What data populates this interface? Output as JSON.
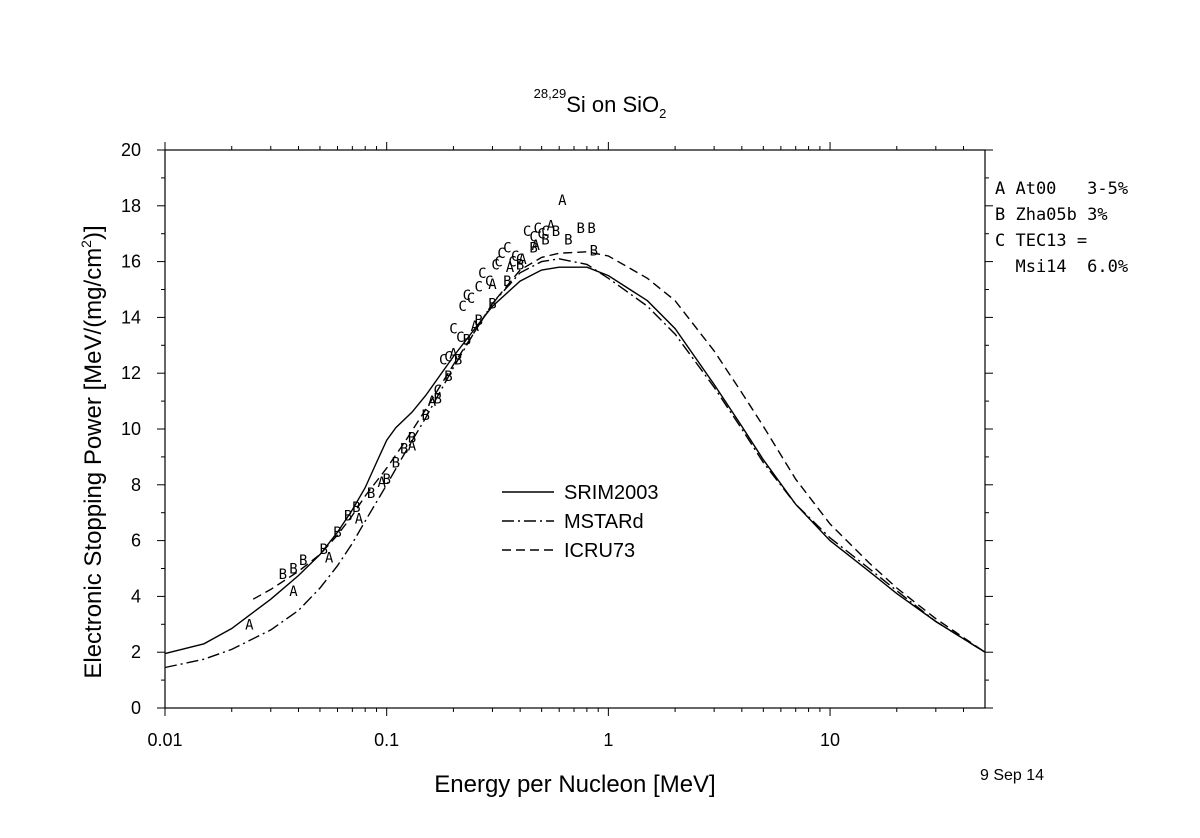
{
  "chart_data": {
    "type": "line",
    "title": {
      "superscript": "28,29",
      "main": "Si on SiO",
      "subscript": "2"
    },
    "xlabel": "Energy per Nucleon [MeV]",
    "ylabel": {
      "main": "Electronic Stopping Power [MeV/(mg/cm",
      "superscript": "2",
      "end": ")]"
    },
    "x_scale": "log",
    "xlim": [
      0.01,
      50
    ],
    "ylim": [
      0,
      20
    ],
    "x_ticks": [
      {
        "value": 0.01,
        "label": "0.01"
      },
      {
        "value": 0.1,
        "label": "0.1"
      },
      {
        "value": 1,
        "label": "1"
      },
      {
        "value": 10,
        "label": "10"
      }
    ],
    "y_ticks": [
      {
        "value": 0,
        "label": "0"
      },
      {
        "value": 2,
        "label": "2"
      },
      {
        "value": 4,
        "label": "4"
      },
      {
        "value": 6,
        "label": "6"
      },
      {
        "value": 8,
        "label": "8"
      },
      {
        "value": 10,
        "label": "10"
      },
      {
        "value": 12,
        "label": "12"
      },
      {
        "value": 14,
        "label": "14"
      },
      {
        "value": 16,
        "label": "16"
      },
      {
        "value": 18,
        "label": "18"
      },
      {
        "value": 20,
        "label": "20"
      }
    ],
    "grid": false,
    "date_stamp": "9 Sep 14",
    "series": [
      {
        "name": "SRIM2003",
        "style": "solid",
        "points": [
          [
            0.01,
            1.95
          ],
          [
            0.015,
            2.3
          ],
          [
            0.02,
            2.85
          ],
          [
            0.03,
            3.9
          ],
          [
            0.04,
            4.75
          ],
          [
            0.05,
            5.5
          ],
          [
            0.06,
            6.3
          ],
          [
            0.07,
            7.1
          ],
          [
            0.08,
            7.9
          ],
          [
            0.09,
            8.8
          ],
          [
            0.1,
            9.6
          ],
          [
            0.11,
            10.05
          ],
          [
            0.13,
            10.6
          ],
          [
            0.15,
            11.2
          ],
          [
            0.2,
            12.6
          ],
          [
            0.25,
            13.6
          ],
          [
            0.3,
            14.4
          ],
          [
            0.4,
            15.3
          ],
          [
            0.5,
            15.7
          ],
          [
            0.6,
            15.8
          ],
          [
            0.8,
            15.8
          ],
          [
            1,
            15.5
          ],
          [
            1.5,
            14.6
          ],
          [
            2,
            13.6
          ],
          [
            3,
            11.6
          ],
          [
            4,
            10.1
          ],
          [
            5,
            8.9
          ],
          [
            7,
            7.3
          ],
          [
            10,
            6.0
          ],
          [
            15,
            4.9
          ],
          [
            20,
            4.1
          ],
          [
            30,
            3.1
          ],
          [
            50,
            2.0
          ]
        ]
      },
      {
        "name": "MSTARd",
        "style": "dashdot",
        "points": [
          [
            0.01,
            1.45
          ],
          [
            0.015,
            1.75
          ],
          [
            0.02,
            2.1
          ],
          [
            0.03,
            2.8
          ],
          [
            0.04,
            3.5
          ],
          [
            0.05,
            4.3
          ],
          [
            0.06,
            5.1
          ],
          [
            0.07,
            5.9
          ],
          [
            0.08,
            6.7
          ],
          [
            0.1,
            8.0
          ],
          [
            0.12,
            9.1
          ],
          [
            0.15,
            10.4
          ],
          [
            0.2,
            12.2
          ],
          [
            0.25,
            13.5
          ],
          [
            0.3,
            14.5
          ],
          [
            0.4,
            15.6
          ],
          [
            0.5,
            16.0
          ],
          [
            0.6,
            16.1
          ],
          [
            0.8,
            15.9
          ],
          [
            1,
            15.4
          ],
          [
            1.5,
            14.4
          ],
          [
            2,
            13.4
          ],
          [
            3,
            11.5
          ],
          [
            4,
            10.0
          ],
          [
            5,
            8.8
          ],
          [
            7,
            7.3
          ],
          [
            10,
            6.1
          ],
          [
            15,
            5.0
          ],
          [
            20,
            4.2
          ],
          [
            30,
            3.1
          ],
          [
            50,
            2.0
          ]
        ]
      },
      {
        "name": "ICRU73",
        "style": "dashed",
        "points": [
          [
            0.025,
            3.9
          ],
          [
            0.03,
            4.25
          ],
          [
            0.04,
            4.9
          ],
          [
            0.05,
            5.5
          ],
          [
            0.06,
            6.2
          ],
          [
            0.07,
            6.9
          ],
          [
            0.08,
            7.6
          ],
          [
            0.1,
            8.6
          ],
          [
            0.12,
            9.5
          ],
          [
            0.15,
            10.7
          ],
          [
            0.2,
            12.3
          ],
          [
            0.25,
            13.5
          ],
          [
            0.3,
            14.5
          ],
          [
            0.4,
            15.7
          ],
          [
            0.5,
            16.15
          ],
          [
            0.6,
            16.3
          ],
          [
            0.8,
            16.35
          ],
          [
            1,
            16.2
          ],
          [
            1.5,
            15.4
          ],
          [
            2,
            14.6
          ],
          [
            3,
            12.8
          ],
          [
            4,
            11.3
          ],
          [
            5,
            10.1
          ],
          [
            7,
            8.2
          ],
          [
            10,
            6.6
          ],
          [
            15,
            5.2
          ],
          [
            20,
            4.3
          ],
          [
            30,
            3.2
          ],
          [
            50,
            2.0
          ]
        ]
      }
    ],
    "markers": [
      {
        "set": "A",
        "points": [
          [
            0.024,
            3.0
          ],
          [
            0.038,
            4.2
          ],
          [
            0.055,
            5.4
          ],
          [
            0.075,
            6.8
          ],
          [
            0.095,
            8.1
          ],
          [
            0.13,
            9.4
          ],
          [
            0.16,
            11.0
          ],
          [
            0.2,
            12.7
          ],
          [
            0.25,
            13.7
          ],
          [
            0.3,
            15.2
          ],
          [
            0.36,
            15.8
          ],
          [
            0.41,
            16.1
          ],
          [
            0.47,
            16.6
          ],
          [
            0.55,
            17.3
          ],
          [
            0.62,
            18.2
          ]
        ]
      },
      {
        "set": "B",
        "points": [
          [
            0.034,
            4.8
          ],
          [
            0.038,
            5.0
          ],
          [
            0.042,
            5.3
          ],
          [
            0.052,
            5.7
          ],
          [
            0.06,
            6.3
          ],
          [
            0.067,
            6.9
          ],
          [
            0.073,
            7.2
          ],
          [
            0.085,
            7.7
          ],
          [
            0.1,
            8.2
          ],
          [
            0.11,
            8.8
          ],
          [
            0.12,
            9.3
          ],
          [
            0.13,
            9.7
          ],
          [
            0.15,
            10.5
          ],
          [
            0.17,
            11.1
          ],
          [
            0.19,
            11.9
          ],
          [
            0.21,
            12.5
          ],
          [
            0.23,
            13.2
          ],
          [
            0.26,
            13.9
          ],
          [
            0.3,
            14.5
          ],
          [
            0.35,
            15.3
          ],
          [
            0.4,
            15.9
          ],
          [
            0.46,
            16.5
          ],
          [
            0.52,
            16.8
          ],
          [
            0.58,
            17.1
          ],
          [
            0.66,
            16.8
          ],
          [
            0.75,
            17.2
          ],
          [
            0.84,
            17.2
          ],
          [
            0.86,
            16.4
          ]
        ]
      },
      {
        "set": "C",
        "points": [
          [
            0.2,
            13.6
          ],
          [
            0.215,
            13.3
          ],
          [
            0.22,
            14.4
          ],
          [
            0.23,
            14.8
          ],
          [
            0.18,
            12.5
          ],
          [
            0.19,
            12.6
          ],
          [
            0.24,
            14.7
          ],
          [
            0.26,
            15.1
          ],
          [
            0.27,
            15.6
          ],
          [
            0.29,
            15.3
          ],
          [
            0.31,
            15.9
          ],
          [
            0.32,
            16.0
          ],
          [
            0.33,
            16.3
          ],
          [
            0.35,
            16.5
          ],
          [
            0.37,
            16.0
          ],
          [
            0.38,
            16.2
          ],
          [
            0.4,
            16.1
          ],
          [
            0.43,
            17.1
          ],
          [
            0.46,
            16.9
          ],
          [
            0.48,
            17.2
          ],
          [
            0.5,
            17.0
          ],
          [
            0.52,
            17.1
          ],
          [
            0.17,
            11.4
          ]
        ]
      }
    ],
    "legend": {
      "placement": "center",
      "entries": [
        {
          "label": "SRIM2003",
          "style": "solid"
        },
        {
          "label": "MSTARd",
          "style": "dashdot"
        },
        {
          "label": "ICRU73",
          "style": "dashed"
        }
      ]
    },
    "data_key": {
      "placement": "right",
      "lines": [
        "A At00   3-5%",
        "B Zha05b 3%",
        "C TEC13 =",
        "  Msi14  6.0%"
      ]
    }
  }
}
